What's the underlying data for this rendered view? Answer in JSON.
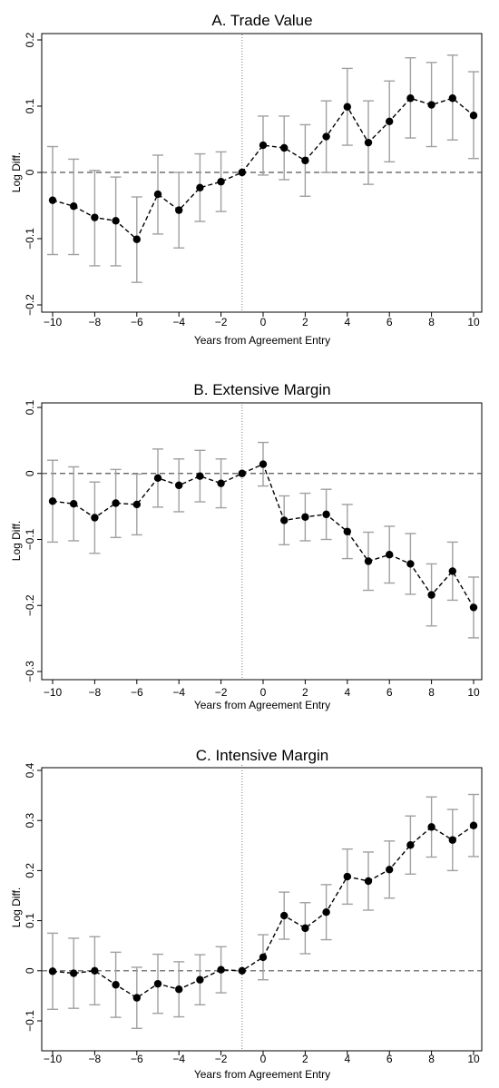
{
  "chart_data": [
    {
      "type": "line",
      "title": "A. Trade Value",
      "xlabel": "Years from Agreement Entry",
      "ylabel": "Log Diff.",
      "xlim": [
        -10,
        10
      ],
      "ylim": [
        -0.2,
        0.2
      ],
      "xticks": [
        -10,
        -8,
        -6,
        -4,
        -2,
        0,
        2,
        4,
        6,
        8,
        10
      ],
      "xtick_labels": [
        "−10",
        "−8",
        "−6",
        "−4",
        "−2",
        "0",
        "2",
        "4",
        "6",
        "8",
        "10"
      ],
      "yticks": [
        -0.2,
        -0.1,
        0,
        0.1,
        0.2
      ],
      "ytick_labels": [
        "−0.2",
        "−0.1",
        "0",
        "0.1",
        "0.2"
      ],
      "reference_line_y": 0,
      "event_line_x": -1,
      "x": [
        -10,
        -9,
        -8,
        -7,
        -6,
        -5,
        -4,
        -3,
        -2,
        -1,
        0,
        1,
        2,
        3,
        4,
        5,
        6,
        7,
        8,
        9,
        10
      ],
      "values": [
        -0.042,
        -0.051,
        -0.068,
        -0.073,
        -0.101,
        -0.033,
        -0.057,
        -0.023,
        -0.014,
        0.0,
        0.041,
        0.037,
        0.018,
        0.054,
        0.099,
        0.045,
        0.077,
        0.112,
        0.102,
        0.112,
        0.086
      ],
      "ci_low": [
        -0.124,
        -0.124,
        -0.141,
        -0.141,
        -0.166,
        -0.093,
        -0.114,
        -0.074,
        -0.059,
        0.0,
        -0.004,
        -0.011,
        -0.036,
        0.0,
        0.041,
        -0.018,
        0.016,
        0.052,
        0.039,
        0.049,
        0.021
      ],
      "ci_high": [
        0.039,
        0.02,
        0.003,
        -0.007,
        -0.037,
        0.026,
        0.0,
        0.028,
        0.031,
        0.0,
        0.085,
        0.085,
        0.072,
        0.108,
        0.157,
        0.108,
        0.138,
        0.173,
        0.166,
        0.177,
        0.152
      ],
      "grid": false,
      "legend": "none"
    },
    {
      "type": "line",
      "title": "B. Extensive Margin",
      "xlabel": "Years from Agreement Entry",
      "ylabel": "Log Diff.",
      "xlim": [
        -10,
        10
      ],
      "ylim": [
        -0.3,
        0.1
      ],
      "xticks": [
        -10,
        -8,
        -6,
        -4,
        -2,
        0,
        2,
        4,
        6,
        8,
        10
      ],
      "xtick_labels": [
        "−10",
        "−8",
        "−6",
        "−4",
        "−2",
        "0",
        "2",
        "4",
        "6",
        "8",
        "10"
      ],
      "yticks": [
        -0.3,
        -0.2,
        -0.1,
        0,
        0.1
      ],
      "ytick_labels": [
        "−0.3",
        "−0.2",
        "−0.1",
        "0",
        "0.1"
      ],
      "reference_line_y": 0,
      "event_line_x": -1,
      "x": [
        -10,
        -9,
        -8,
        -7,
        -6,
        -5,
        -4,
        -3,
        -2,
        -1,
        0,
        1,
        2,
        3,
        4,
        5,
        6,
        7,
        8,
        9,
        10
      ],
      "values": [
        -0.042,
        -0.046,
        -0.067,
        -0.045,
        -0.047,
        -0.007,
        -0.018,
        -0.004,
        -0.015,
        0.0,
        0.014,
        -0.071,
        -0.066,
        -0.062,
        -0.088,
        -0.133,
        -0.123,
        -0.137,
        -0.184,
        -0.148,
        -0.203
      ],
      "ci_low": [
        -0.104,
        -0.102,
        -0.121,
        -0.097,
        -0.093,
        -0.051,
        -0.058,
        -0.043,
        -0.052,
        0.0,
        -0.019,
        -0.108,
        -0.102,
        -0.1,
        -0.129,
        -0.177,
        -0.166,
        -0.183,
        -0.231,
        -0.192,
        -0.249
      ],
      "ci_high": [
        0.02,
        0.01,
        -0.013,
        0.006,
        -0.001,
        0.037,
        0.022,
        0.035,
        0.022,
        0.0,
        0.047,
        -0.034,
        -0.03,
        -0.024,
        -0.047,
        -0.089,
        -0.08,
        -0.091,
        -0.137,
        -0.104,
        -0.157
      ],
      "grid": false,
      "legend": "none"
    },
    {
      "type": "line",
      "title": "C. Intensive Margin",
      "xlabel": "Years from Agreement Entry",
      "ylabel": "Log Diff.",
      "xlim": [
        -10,
        10
      ],
      "ylim": [
        -0.1,
        0.4
      ],
      "xticks": [
        -10,
        -8,
        -6,
        -4,
        -2,
        0,
        2,
        4,
        6,
        8,
        10
      ],
      "xtick_labels": [
        "−10",
        "−8",
        "−6",
        "−4",
        "−2",
        "0",
        "2",
        "4",
        "6",
        "8",
        "10"
      ],
      "yticks": [
        -0.1,
        0,
        0.1,
        0.2,
        0.3,
        0.4
      ],
      "ytick_labels": [
        "−0.1",
        "0",
        "0.1",
        "0.2",
        "0.3",
        "0.4"
      ],
      "reference_line_y": 0,
      "event_line_x": -1,
      "x": [
        -10,
        -9,
        -8,
        -7,
        -6,
        -5,
        -4,
        -3,
        -2,
        -1,
        0,
        1,
        2,
        3,
        4,
        5,
        6,
        7,
        8,
        9,
        10
      ],
      "values": [
        -0.001,
        -0.005,
        0.0,
        -0.028,
        -0.054,
        -0.026,
        -0.037,
        -0.018,
        0.002,
        0.0,
        0.027,
        0.11,
        0.085,
        0.117,
        0.188,
        0.179,
        0.202,
        0.251,
        0.287,
        0.261,
        0.29
      ],
      "ci_low": [
        -0.077,
        -0.075,
        -0.068,
        -0.093,
        -0.115,
        -0.085,
        -0.092,
        -0.068,
        -0.044,
        0.0,
        -0.018,
        0.063,
        0.034,
        0.062,
        0.133,
        0.121,
        0.145,
        0.193,
        0.227,
        0.2,
        0.228
      ],
      "ci_high": [
        0.075,
        0.065,
        0.068,
        0.037,
        0.007,
        0.033,
        0.018,
        0.032,
        0.048,
        0.0,
        0.072,
        0.157,
        0.136,
        0.172,
        0.243,
        0.237,
        0.259,
        0.309,
        0.347,
        0.322,
        0.352
      ],
      "grid": false,
      "legend": "none"
    }
  ],
  "style": {
    "point_color": "#000000",
    "line_color": "#000000",
    "ci_color": "#a0a0a0",
    "reference_line_color": "#555555",
    "event_line_color": "#777777"
  }
}
